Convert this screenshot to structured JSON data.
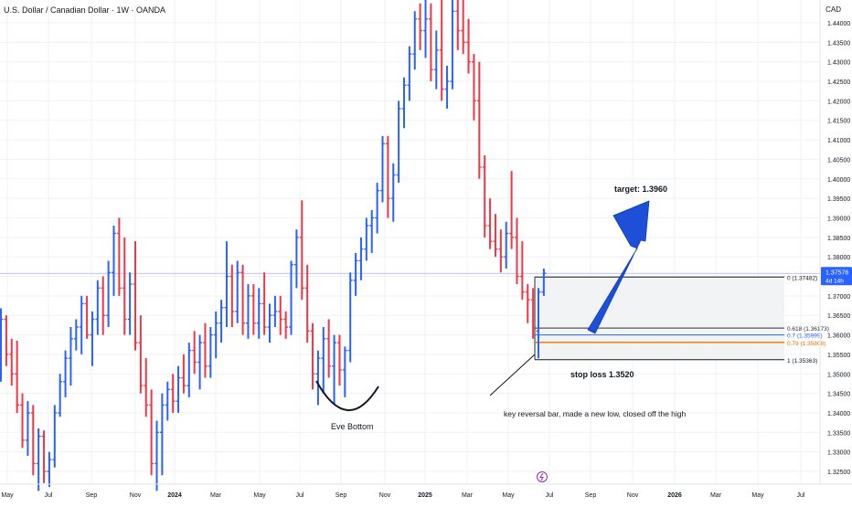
{
  "header": {
    "symbol_title": "U.S. Dollar / Canadian Dollar · 1W · OANDA",
    "currency": "CAD"
  },
  "colors": {
    "up": "#2962ff",
    "down": "#f23645",
    "grid": "#eef0f3",
    "text": "#131722",
    "price_line": "#9db3f5",
    "badge": "#2962ff",
    "fib_zone": "#f2f3f5",
    "fib_0618": "#2a2e39",
    "fib_07": "#2962ff",
    "fib_079": "#ef6c00",
    "arrow": "#1e4fd8"
  },
  "chart_data": {
    "type": "ohlc",
    "title": "U.S. Dollar / Canadian Dollar · 1W · OANDA",
    "ylabel": "CAD",
    "ylim": [
      1.3215,
      1.4455
    ],
    "y_ticks": [
      1.325,
      1.33,
      1.335,
      1.34,
      1.345,
      1.35,
      1.355,
      1.36,
      1.365,
      1.37,
      1.375,
      1.38,
      1.385,
      1.39,
      1.395,
      1.4,
      1.405,
      1.41,
      1.415,
      1.42,
      1.425,
      1.43,
      1.435,
      1.44
    ],
    "x_ticks": [
      "May",
      "Jul",
      "Sep",
      "Nov",
      "2024",
      "Mar",
      "May",
      "Jul",
      "Sep",
      "Nov",
      "2025",
      "Mar",
      "May",
      "Jul",
      "Sep",
      "Nov",
      "2026",
      "Mar",
      "May",
      "Jul"
    ],
    "last_price": {
      "value": 1.37576,
      "label": "1.37576",
      "countdown": "4d 14h"
    },
    "grid": true,
    "bars": [
      {
        "o": 1.356,
        "h": 1.3668,
        "l": 1.348,
        "c": 1.364
      },
      {
        "o": 1.364,
        "h": 1.365,
        "l": 1.352,
        "c": 1.355
      },
      {
        "o": 1.355,
        "h": 1.359,
        "l": 1.347,
        "c": 1.35
      },
      {
        "o": 1.35,
        "h": 1.3585,
        "l": 1.34,
        "c": 1.342
      },
      {
        "o": 1.342,
        "h": 1.345,
        "l": 1.331,
        "c": 1.333
      },
      {
        "o": 1.333,
        "h": 1.343,
        "l": 1.329,
        "c": 1.34
      },
      {
        "o": 1.34,
        "h": 1.342,
        "l": 1.324,
        "c": 1.327
      },
      {
        "o": 1.327,
        "h": 1.336,
        "l": 1.32,
        "c": 1.334
      },
      {
        "o": 1.334,
        "h": 1.3355,
        "l": 1.322,
        "c": 1.325
      },
      {
        "o": 1.325,
        "h": 1.33,
        "l": 1.321,
        "c": 1.328
      },
      {
        "o": 1.328,
        "h": 1.342,
        "l": 1.326,
        "c": 1.34
      },
      {
        "o": 1.34,
        "h": 1.35,
        "l": 1.339,
        "c": 1.348
      },
      {
        "o": 1.348,
        "h": 1.356,
        "l": 1.344,
        "c": 1.354
      },
      {
        "o": 1.354,
        "h": 1.362,
        "l": 1.347,
        "c": 1.359
      },
      {
        "o": 1.359,
        "h": 1.364,
        "l": 1.356,
        "c": 1.362
      },
      {
        "o": 1.362,
        "h": 1.37,
        "l": 1.355,
        "c": 1.368
      },
      {
        "o": 1.368,
        "h": 1.37,
        "l": 1.359,
        "c": 1.36
      },
      {
        "o": 1.36,
        "h": 1.366,
        "l": 1.352,
        "c": 1.364
      },
      {
        "o": 1.364,
        "h": 1.374,
        "l": 1.36,
        "c": 1.372
      },
      {
        "o": 1.372,
        "h": 1.375,
        "l": 1.36,
        "c": 1.365
      },
      {
        "o": 1.365,
        "h": 1.379,
        "l": 1.362,
        "c": 1.376
      },
      {
        "o": 1.376,
        "h": 1.388,
        "l": 1.37,
        "c": 1.386
      },
      {
        "o": 1.386,
        "h": 1.39,
        "l": 1.37,
        "c": 1.372
      },
      {
        "o": 1.372,
        "h": 1.385,
        "l": 1.36,
        "c": 1.364
      },
      {
        "o": 1.364,
        "h": 1.376,
        "l": 1.36,
        "c": 1.373
      },
      {
        "o": 1.373,
        "h": 1.384,
        "l": 1.356,
        "c": 1.358
      },
      {
        "o": 1.358,
        "h": 1.365,
        "l": 1.345,
        "c": 1.347
      },
      {
        "o": 1.347,
        "h": 1.354,
        "l": 1.339,
        "c": 1.342
      },
      {
        "o": 1.342,
        "h": 1.346,
        "l": 1.324,
        "c": 1.327
      },
      {
        "o": 1.327,
        "h": 1.338,
        "l": 1.32,
        "c": 1.335
      },
      {
        "o": 1.335,
        "h": 1.345,
        "l": 1.324,
        "c": 1.342
      },
      {
        "o": 1.342,
        "h": 1.348,
        "l": 1.338,
        "c": 1.346
      },
      {
        "o": 1.346,
        "h": 1.35,
        "l": 1.34,
        "c": 1.343
      },
      {
        "o": 1.343,
        "h": 1.352,
        "l": 1.34,
        "c": 1.349
      },
      {
        "o": 1.349,
        "h": 1.355,
        "l": 1.345,
        "c": 1.347
      },
      {
        "o": 1.347,
        "h": 1.358,
        "l": 1.344,
        "c": 1.356
      },
      {
        "o": 1.356,
        "h": 1.361,
        "l": 1.35,
        "c": 1.353
      },
      {
        "o": 1.353,
        "h": 1.36,
        "l": 1.346,
        "c": 1.358
      },
      {
        "o": 1.358,
        "h": 1.363,
        "l": 1.349,
        "c": 1.352
      },
      {
        "o": 1.352,
        "h": 1.362,
        "l": 1.349,
        "c": 1.36
      },
      {
        "o": 1.36,
        "h": 1.366,
        "l": 1.354,
        "c": 1.363
      },
      {
        "o": 1.363,
        "h": 1.369,
        "l": 1.358,
        "c": 1.367
      },
      {
        "o": 1.367,
        "h": 1.384,
        "l": 1.362,
        "c": 1.375
      },
      {
        "o": 1.375,
        "h": 1.378,
        "l": 1.362,
        "c": 1.366
      },
      {
        "o": 1.366,
        "h": 1.379,
        "l": 1.363,
        "c": 1.376
      },
      {
        "o": 1.376,
        "h": 1.378,
        "l": 1.36,
        "c": 1.363
      },
      {
        "o": 1.363,
        "h": 1.373,
        "l": 1.359,
        "c": 1.37
      },
      {
        "o": 1.37,
        "h": 1.373,
        "l": 1.36,
        "c": 1.363
      },
      {
        "o": 1.363,
        "h": 1.372,
        "l": 1.359,
        "c": 1.368
      },
      {
        "o": 1.368,
        "h": 1.376,
        "l": 1.36,
        "c": 1.362
      },
      {
        "o": 1.362,
        "h": 1.368,
        "l": 1.358,
        "c": 1.365
      },
      {
        "o": 1.365,
        "h": 1.37,
        "l": 1.362,
        "c": 1.366
      },
      {
        "o": 1.366,
        "h": 1.37,
        "l": 1.36,
        "c": 1.364
      },
      {
        "o": 1.364,
        "h": 1.366,
        "l": 1.359,
        "c": 1.362
      },
      {
        "o": 1.362,
        "h": 1.379,
        "l": 1.36,
        "c": 1.378
      },
      {
        "o": 1.378,
        "h": 1.387,
        "l": 1.372,
        "c": 1.385
      },
      {
        "o": 1.385,
        "h": 1.3945,
        "l": 1.369,
        "c": 1.372
      },
      {
        "o": 1.372,
        "h": 1.378,
        "l": 1.358,
        "c": 1.361
      },
      {
        "o": 1.361,
        "h": 1.363,
        "l": 1.346,
        "c": 1.35
      },
      {
        "o": 1.35,
        "h": 1.356,
        "l": 1.342,
        "c": 1.354
      },
      {
        "o": 1.354,
        "h": 1.362,
        "l": 1.345,
        "c": 1.359
      },
      {
        "o": 1.359,
        "h": 1.364,
        "l": 1.349,
        "c": 1.352
      },
      {
        "o": 1.352,
        "h": 1.36,
        "l": 1.342,
        "c": 1.358
      },
      {
        "o": 1.358,
        "h": 1.36,
        "l": 1.347,
        "c": 1.351
      },
      {
        "o": 1.351,
        "h": 1.357,
        "l": 1.344,
        "c": 1.356
      },
      {
        "o": 1.356,
        "h": 1.376,
        "l": 1.353,
        "c": 1.374
      },
      {
        "o": 1.374,
        "h": 1.381,
        "l": 1.37,
        "c": 1.379
      },
      {
        "o": 1.379,
        "h": 1.385,
        "l": 1.374,
        "c": 1.382
      },
      {
        "o": 1.382,
        "h": 1.39,
        "l": 1.379,
        "c": 1.388
      },
      {
        "o": 1.388,
        "h": 1.392,
        "l": 1.381,
        "c": 1.39
      },
      {
        "o": 1.39,
        "h": 1.399,
        "l": 1.386,
        "c": 1.397
      },
      {
        "o": 1.397,
        "h": 1.411,
        "l": 1.394,
        "c": 1.409
      },
      {
        "o": 1.409,
        "h": 1.411,
        "l": 1.39,
        "c": 1.395
      },
      {
        "o": 1.395,
        "h": 1.404,
        "l": 1.389,
        "c": 1.401
      },
      {
        "o": 1.401,
        "h": 1.42,
        "l": 1.399,
        "c": 1.418
      },
      {
        "o": 1.418,
        "h": 1.426,
        "l": 1.413,
        "c": 1.424
      },
      {
        "o": 1.424,
        "h": 1.434,
        "l": 1.42,
        "c": 1.432
      },
      {
        "o": 1.432,
        "h": 1.443,
        "l": 1.428,
        "c": 1.441
      },
      {
        "o": 1.441,
        "h": 1.445,
        "l": 1.433,
        "c": 1.438
      },
      {
        "o": 1.438,
        "h": 1.446,
        "l": 1.431,
        "c": 1.441
      },
      {
        "o": 1.441,
        "h": 1.445,
        "l": 1.425,
        "c": 1.428
      },
      {
        "o": 1.428,
        "h": 1.438,
        "l": 1.423,
        "c": 1.433
      },
      {
        "o": 1.433,
        "h": 1.446,
        "l": 1.42,
        "c": 1.423
      },
      {
        "o": 1.423,
        "h": 1.429,
        "l": 1.418,
        "c": 1.425
      },
      {
        "o": 1.425,
        "h": 1.446,
        "l": 1.423,
        "c": 1.443
      },
      {
        "o": 1.443,
        "h": 1.447,
        "l": 1.433,
        "c": 1.438
      },
      {
        "o": 1.438,
        "h": 1.446,
        "l": 1.432,
        "c": 1.435
      },
      {
        "o": 1.435,
        "h": 1.441,
        "l": 1.427,
        "c": 1.43
      },
      {
        "o": 1.43,
        "h": 1.432,
        "l": 1.415,
        "c": 1.42
      },
      {
        "o": 1.42,
        "h": 1.43,
        "l": 1.4,
        "c": 1.403
      },
      {
        "o": 1.403,
        "h": 1.406,
        "l": 1.385,
        "c": 1.388
      },
      {
        "o": 1.388,
        "h": 1.395,
        "l": 1.382,
        "c": 1.384
      },
      {
        "o": 1.384,
        "h": 1.391,
        "l": 1.38,
        "c": 1.382
      },
      {
        "o": 1.382,
        "h": 1.387,
        "l": 1.376,
        "c": 1.38
      },
      {
        "o": 1.38,
        "h": 1.389,
        "l": 1.377,
        "c": 1.386
      },
      {
        "o": 1.386,
        "h": 1.402,
        "l": 1.382,
        "c": 1.385
      },
      {
        "o": 1.385,
        "h": 1.39,
        "l": 1.373,
        "c": 1.375
      },
      {
        "o": 1.375,
        "h": 1.384,
        "l": 1.369,
        "c": 1.371
      },
      {
        "o": 1.371,
        "h": 1.373,
        "l": 1.363,
        "c": 1.369
      },
      {
        "o": 1.369,
        "h": 1.372,
        "l": 1.359,
        "c": 1.361
      },
      {
        "o": 1.361,
        "h": 1.372,
        "l": 1.354,
        "c": 1.371
      },
      {
        "o": 1.371,
        "h": 1.377,
        "l": 1.37,
        "c": 1.3758
      }
    ]
  },
  "fib": {
    "levels": [
      {
        "value": 1.37482,
        "label": "0 (1.37482)"
      },
      {
        "value": 1.36173,
        "label": "0.618 (1.36173)"
      },
      {
        "value": 1.35999,
        "label": "0.7 (1.35999)"
      },
      {
        "value": 1.35808,
        "label": "0.79 (1.35808)"
      },
      {
        "value": 1.35363,
        "label": "1 (1.35363)"
      }
    ]
  },
  "annotations": {
    "target": "target: 1.3960",
    "stop_loss": "stop loss 1.3520",
    "reversal_note": "key reversal bar, made a new low, closed off the high",
    "eve_bottom": "Eve Bottom"
  }
}
